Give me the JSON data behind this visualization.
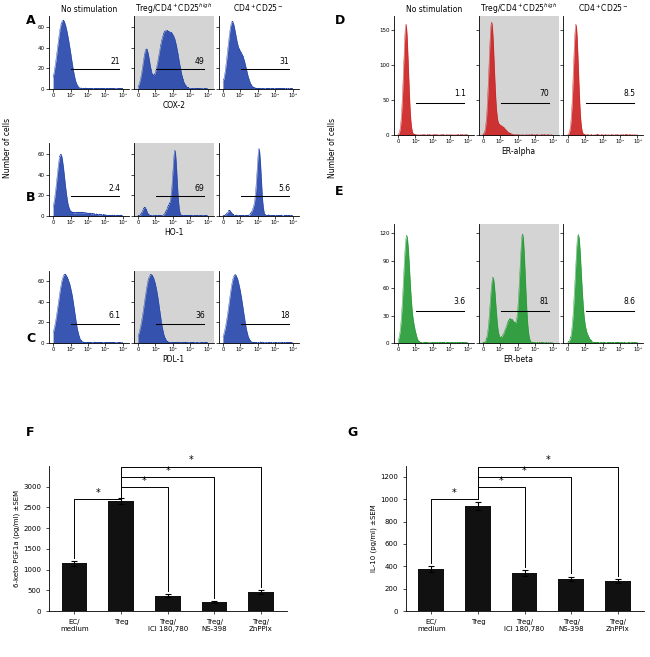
{
  "col_headers": [
    "No stimulation",
    "Treg/CD4⁺CD25ʰⁱᵍʰ",
    "CD4⁺CD25⁻"
  ],
  "flow_color_blue": "#2244aa",
  "flow_color_red": "#cc2020",
  "flow_color_green": "#229933",
  "panels_ABC_percentages": {
    "A": [
      "21",
      "49",
      "31"
    ],
    "B": [
      "2.4",
      "69",
      "5.6"
    ],
    "C": [
      "6.1",
      "36",
      "18"
    ]
  },
  "panels_DE_percentages": {
    "D": [
      "1.1",
      "70",
      "8.5"
    ],
    "E": [
      "3.6",
      "81",
      "8.6"
    ]
  },
  "flow_ylim_ABC": 70,
  "flow_yticks_ABC": [
    0,
    20,
    40,
    60
  ],
  "flow_ylim_D": 170,
  "flow_yticks_D": [
    0,
    50,
    100,
    150
  ],
  "flow_ylim_E": 130,
  "flow_yticks_E": [
    0,
    30,
    60,
    90,
    120
  ],
  "xlabel_A": "COX-2",
  "xlabel_B": "HO-1",
  "xlabel_C": "PDL-1",
  "xlabel_D": "ER-alpha",
  "xlabel_E": "ER-beta",
  "flow_ylabel": "Number of cells",
  "bar_cats_F": [
    "EC/\nmedium",
    "Treg",
    "Treg/\nICI 180,780",
    "Treg/\nNS-398",
    "Treg/\nZnPPlx"
  ],
  "bar_vals_F": [
    1150,
    2650,
    370,
    220,
    450
  ],
  "bar_errs_F": [
    60,
    80,
    40,
    25,
    50
  ],
  "bar_ylabel_F": "6-keto PGF1a (pg/ml) ±SEM",
  "bar_ylim_F": 3500,
  "bar_yticks_F": [
    0,
    500,
    1000,
    1500,
    2000,
    2500,
    3000
  ],
  "bar_cats_G": [
    "EC/\nmedium",
    "Treg",
    "Treg/\nICI 180,780",
    "Treg/\nNS-398",
    "Treg/\nZnPPlx"
  ],
  "bar_vals_G": [
    375,
    940,
    340,
    290,
    270
  ],
  "bar_errs_G": [
    25,
    35,
    25,
    18,
    18
  ],
  "bar_ylabel_G": "IL-10 (pg/ml) ±SEM",
  "bar_ylim_G": 1300,
  "bar_yticks_G": [
    0,
    200,
    400,
    600,
    800,
    1000,
    1200
  ],
  "bar_color": "#111111"
}
